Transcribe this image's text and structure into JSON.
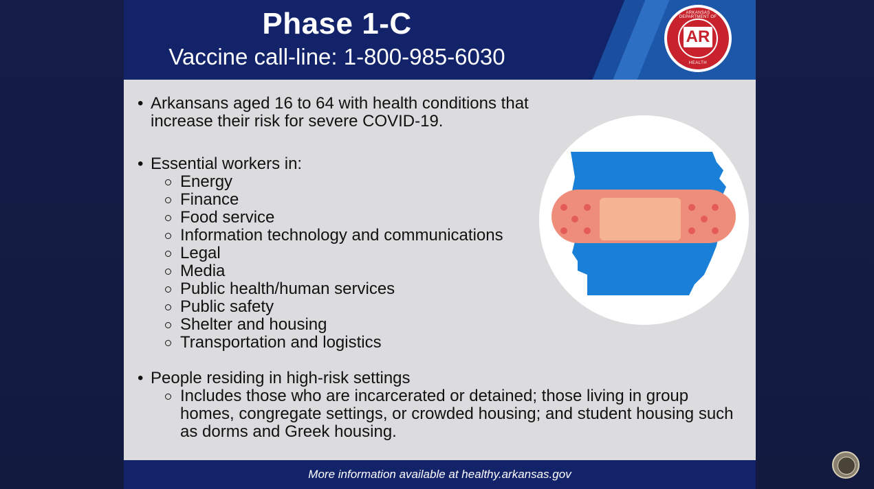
{
  "header": {
    "title": "Phase 1-C",
    "subtitle": "Vaccine call-line: 1-800-985-6030",
    "logo": {
      "top_text": "ARKANSAS DEPARTMENT OF",
      "center_text": "AR",
      "bottom_text": "HEALTH"
    }
  },
  "content": {
    "items": [
      {
        "text": "Arkansans aged 16 to 64 with health conditions that increase their risk for severe COVID-19."
      },
      {
        "text": "Essential workers in:",
        "subitems": [
          "Energy",
          "Finance",
          "Food service",
          "Information technology and communications",
          "Legal",
          "Media",
          "Public health/human services",
          "Public safety",
          "Shelter and housing",
          "Transportation and logistics"
        ]
      },
      {
        "text": "People residing in high-risk settings",
        "subitems": [
          "Includes those who are incarcerated or detained; those living in group homes, congregate settings, or crowded housing; and student housing such as dorms and Greek housing."
        ]
      }
    ],
    "illustration_icon": "arkansas-map-with-bandage-icon"
  },
  "footer": {
    "text": "More information available at healthy.arkansas.gov"
  },
  "colors": {
    "header_bg": "#13236a",
    "content_bg": "#dcdcde",
    "map_blue": "#1a7fd6",
    "bandage": "#ee8e7a",
    "logo_red": "#c8232c"
  }
}
